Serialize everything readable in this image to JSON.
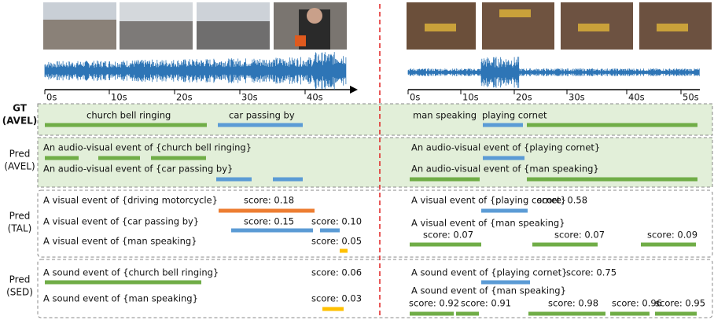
{
  "left_axis": {
    "ticks": [
      "0s",
      "10s",
      "20s",
      "30s",
      "40s"
    ]
  },
  "right_axis": {
    "ticks": [
      "0s",
      "10s",
      "20s",
      "30s",
      "40s",
      "50s"
    ]
  },
  "rows": [
    {
      "label": [
        "GT",
        "(AVEL)"
      ],
      "left": [
        "church bell ringing",
        "car passing by"
      ],
      "right": [
        "man speaking",
        "playing cornet"
      ]
    },
    {
      "label": [
        "Pred",
        "(AVEL)"
      ],
      "left": [
        "An audio-visual event of {church bell ringing}",
        "An audio-visual event of {car passing by}"
      ],
      "right": [
        "An audio-visual event of {playing cornet}",
        "An audio-visual event of {man speaking}"
      ]
    },
    {
      "label": [
        "Pred",
        "(TAL)"
      ],
      "left": [
        "A visual event of {driving motorcycle}",
        "score: 0.18",
        "A visual event of {car passing by}",
        "score: 0.15",
        "score: 0.10",
        "A visual event of {man speaking}",
        "score: 0.05"
      ],
      "right": [
        "A visual event of {playing cornet}",
        "score: 0.58",
        "A visual event of {man speaking}",
        "score: 0.07",
        "score: 0.07",
        "score: 0.09"
      ]
    },
    {
      "label": [
        "Pred",
        "(SED)"
      ],
      "left": [
        "A sound event of {church bell ringing}",
        "score: 0.06",
        "A sound event of {man speaking}",
        "score: 0.03"
      ],
      "right": [
        "A sound event of {playing cornet}",
        "score: 0.75",
        "A sound event of {man speaking}",
        "score: 0.92",
        "score: 0.91",
        "score: 0.98",
        "score: 0.96",
        "score: 0.95"
      ]
    }
  ]
}
